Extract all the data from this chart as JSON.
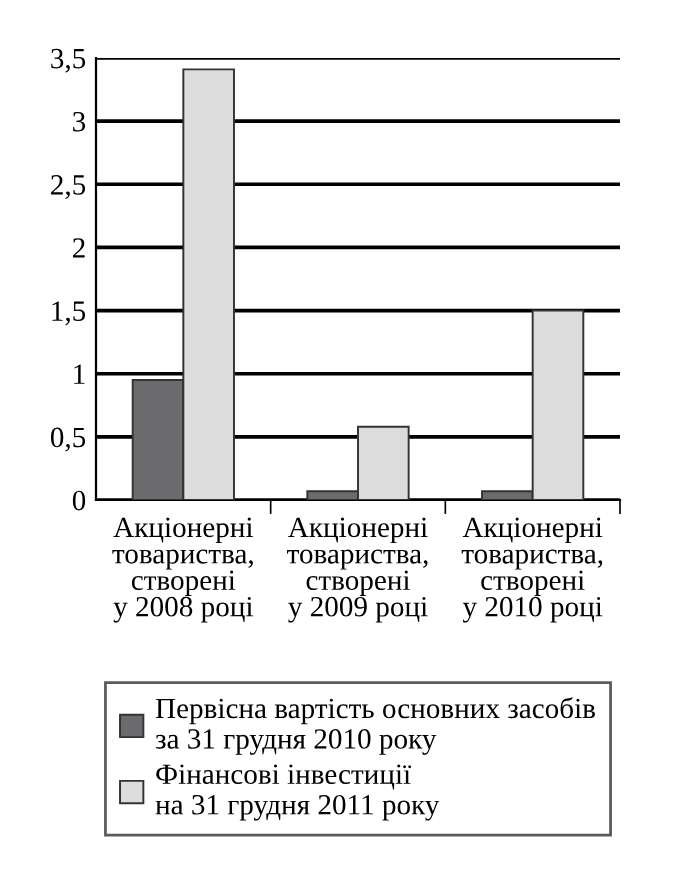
{
  "chart_data": {
    "type": "bar",
    "categories": [
      "Акціонерні\nтовариства,\nстворені\nу 2008 році",
      "Акціонерні\nтовариства,\nстворені\nу 2009 році",
      "Акціонерні\nтовариства,\nстворені\nу 2010 році"
    ],
    "series": [
      {
        "name": "Первісна вартість основних засобів\nза 31 грудня 2010 року",
        "color": "#6b6b6d",
        "values": [
          0.95,
          0.07,
          0.07
        ]
      },
      {
        "name": "Фінансові інвестиції\nна 31 грудня 2011 року",
        "color": "#dcdcdc",
        "values": [
          3.41,
          0.58,
          1.5
        ]
      }
    ],
    "ylim": [
      0,
      3.5
    ],
    "yticks": [
      0,
      {
        "value": 0.5,
        "label": "0,5"
      },
      1,
      {
        "value": 1.5,
        "label": "1,5"
      },
      2,
      {
        "value": 2.5,
        "label": "2,5"
      },
      3,
      {
        "value": 3.5,
        "label": "3,5"
      }
    ],
    "grid": "y",
    "legend": "bottom"
  }
}
